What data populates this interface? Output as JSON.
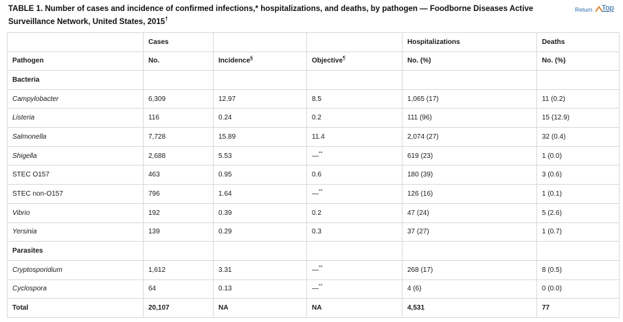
{
  "caption": {
    "text": "TABLE 1. Number of cases and incidence of confirmed infections,* hospitalizations, and deaths, by pathogen — Foodborne Diseases Active Surveillance Network, United States, 2015",
    "mark": "†"
  },
  "return_top": {
    "return_label": "Return",
    "top_label": "Top"
  },
  "header": {
    "row1": {
      "cases": "Cases",
      "hospitalizations": "Hospitalizations",
      "deaths": "Deaths"
    },
    "row2": {
      "pathogen": "Pathogen",
      "no": "No.",
      "incidence": "Incidence",
      "incidence_mark": "§",
      "objective": "Objective",
      "objective_mark": "¶",
      "hosp_no_pct": "No. (%)",
      "deaths_no_pct": "No. (%)"
    }
  },
  "groups": {
    "bacteria": {
      "label": "Bacteria",
      "rows": [
        {
          "pathogen": "Campylobacter",
          "italic": true,
          "no": "6,309",
          "incidence": "12.97",
          "objective": "8.5",
          "objective_mark": "",
          "hosp": "1,065 (17)",
          "deaths": "11 (0.2)"
        },
        {
          "pathogen": "Listeria",
          "italic": true,
          "no": "116",
          "incidence": "0.24",
          "objective": "0.2",
          "objective_mark": "",
          "hosp": "111 (96)",
          "deaths": "15 (12.9)"
        },
        {
          "pathogen": "Salmonella",
          "italic": true,
          "no": "7,728",
          "incidence": "15.89",
          "objective": "11.4",
          "objective_mark": "",
          "hosp": "2,074 (27)",
          "deaths": "32 (0.4)"
        },
        {
          "pathogen": "Shigella",
          "italic": true,
          "no": "2,688",
          "incidence": "5.53",
          "objective": "—",
          "objective_mark": "**",
          "hosp": "619 (23)",
          "deaths": "1 (0.0)"
        },
        {
          "pathogen": "STEC O157",
          "italic": false,
          "no": "463",
          "incidence": "0.95",
          "objective": "0.6",
          "objective_mark": "",
          "hosp": "180 (39)",
          "deaths": "3 (0.6)"
        },
        {
          "pathogen": "STEC non-O157",
          "italic": false,
          "no": "796",
          "incidence": "1.64",
          "objective": "—",
          "objective_mark": "**",
          "hosp": "126 (16)",
          "deaths": "1 (0.1)"
        },
        {
          "pathogen": "Vibrio",
          "italic": true,
          "no": "192",
          "incidence": "0.39",
          "objective": "0.2",
          "objective_mark": "",
          "hosp": "47 (24)",
          "deaths": "5 (2.6)"
        },
        {
          "pathogen": "Yersinia",
          "italic": true,
          "no": "139",
          "incidence": "0.29",
          "objective": "0.3",
          "objective_mark": "",
          "hosp": "37 (27)",
          "deaths": "1 (0.7)"
        }
      ]
    },
    "parasites": {
      "label": "Parasites",
      "rows": [
        {
          "pathogen": "Cryptosporidium",
          "italic": true,
          "no": "1,612",
          "incidence": "3.31",
          "objective": "—",
          "objective_mark": "**",
          "hosp": "268 (17)",
          "deaths": "8 (0.5)"
        },
        {
          "pathogen": "Cyclospora",
          "italic": true,
          "no": "64",
          "incidence": "0.13",
          "objective": "—",
          "objective_mark": "**",
          "hosp": "4 (6)",
          "deaths": "0 (0.0)"
        }
      ]
    }
  },
  "total": {
    "label": "Total",
    "no": "20,107",
    "incidence": "NA",
    "objective": "NA",
    "hosp": "4,531",
    "deaths": "77"
  },
  "colors": {
    "link": "#1d5f9a",
    "border": "#d9d9d9",
    "text": "#1a1a1a"
  }
}
